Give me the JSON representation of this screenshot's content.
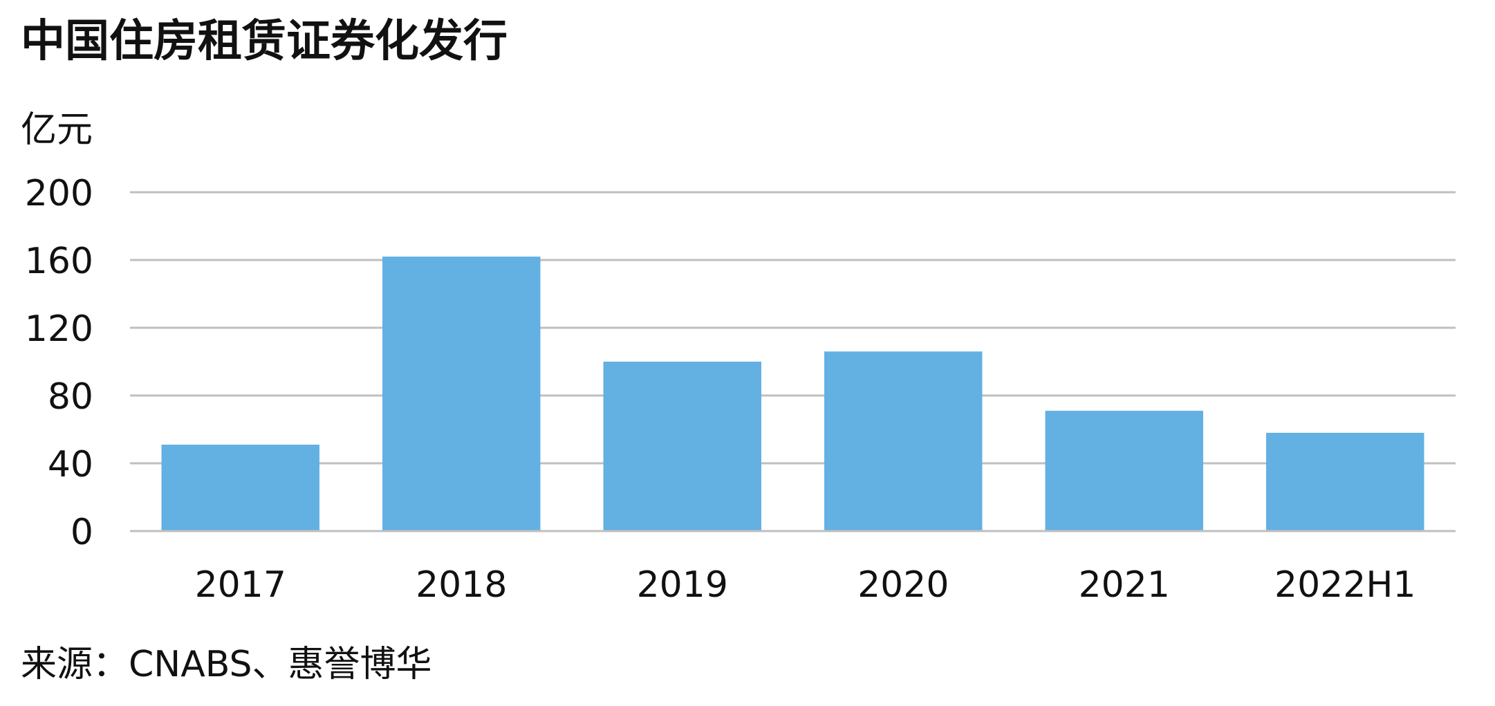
{
  "chart_data": {
    "type": "bar",
    "title": "中国住房租赁证券化发行",
    "ylabel": "亿元",
    "xlabel": "",
    "categories": [
      "2017",
      "2018",
      "2019",
      "2020",
      "2021",
      "2022H1"
    ],
    "values": [
      51,
      162,
      100,
      106,
      71,
      58
    ],
    "ylim": [
      0,
      200
    ],
    "yticks": [
      0,
      40,
      80,
      120,
      160,
      200
    ],
    "grid": true,
    "legend": "none",
    "source": "来源：CNABS、惠誉博华",
    "colors": {
      "bar": "#63B0E3",
      "grid": "#BFBFBF",
      "text": "#111111"
    }
  }
}
